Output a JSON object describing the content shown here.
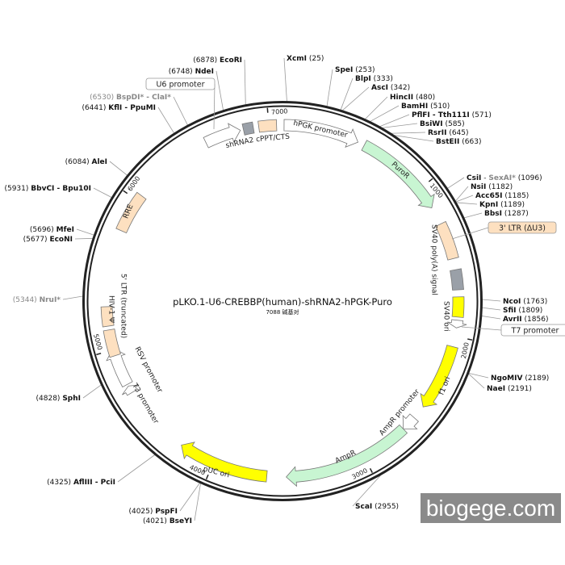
{
  "plasmid": {
    "name": "pLKO.1-U6-CREBBP(human)-shRNA2-hPGK-Puro",
    "size_label": "7088 碱基对",
    "length_bp": 7088,
    "tick_labels": [
      "1000",
      "2000",
      "3000",
      "4000",
      "5000",
      "6000",
      "7000"
    ]
  },
  "colors": {
    "ring": "#222222",
    "tan": "#fde0c0",
    "green": "#c8f5d2",
    "yellow": "#ffff00",
    "gray": "#9aa0a8",
    "white": "#ffffff",
    "gray_site": "#888888"
  },
  "features": [
    {
      "label": "hPGK promoter",
      "start": 10,
      "end": 500,
      "shape": "arrow",
      "color": "#ffffff"
    },
    {
      "label": "PuroR",
      "start": 545,
      "end": 1142,
      "shape": "arrow",
      "color": "#c8f5d2"
    },
    {
      "label": "SV40 poly(A) signal",
      "start": 1260,
      "end": 1497,
      "shape": "box",
      "color": "#fde0c0"
    },
    {
      "label": "",
      "start": 1570,
      "end": 1700,
      "shape": "box",
      "color": "#9aa0a8"
    },
    {
      "label": "SV40 ori",
      "start": 1745,
      "end": 1875,
      "shape": "box",
      "color": "#ffff00"
    },
    {
      "label": "",
      "start": 1895,
      "end": 1945,
      "shape": "arrow",
      "color": "#ffffff"
    },
    {
      "label": "f1 ori",
      "start": 2067,
      "end": 2500,
      "shape": "arrow",
      "color": "#ffff00"
    },
    {
      "label": "AmpR promoter",
      "start": 2590,
      "end": 2690,
      "shape": "arrow",
      "color": "#ffffff"
    },
    {
      "label": "AmpR",
      "start": 2690,
      "end": 3520,
      "shape": "arrow",
      "color": "#c8f5d2"
    },
    {
      "label": "pUC ori",
      "start": 3645,
      "end": 4235,
      "shape": "arrow",
      "color": "#ffff00"
    },
    {
      "label": "T3 promoter",
      "start": 4700,
      "end": 4748,
      "shape": "arrow",
      "color": "#ffffff"
    },
    {
      "label": "RSV promoter",
      "start": 4760,
      "end": 5010,
      "shape": "arrow",
      "color": "#ffffff"
    },
    {
      "label": "5' LTR (truncated)",
      "start": 4960,
      "end": 5130,
      "shape": "box",
      "color": "#fde0c0"
    },
    {
      "label": "HIV-1 Ψ",
      "start": 5155,
      "end": 5280,
      "shape": "box",
      "color": "#fde0c0"
    },
    {
      "label": "RRE",
      "start": 5780,
      "end": 6040,
      "shape": "box",
      "color": "#fde0c0"
    },
    {
      "label": "",
      "start": 6580,
      "end": 6815,
      "shape": "arrow",
      "color": "#ffffff"
    },
    {
      "label": "shRNA2",
      "start": 6835,
      "end": 6900,
      "shape": "box",
      "color": "#9aa0a8"
    },
    {
      "label": "cPPT/CTS",
      "start": 6935,
      "end": 7050,
      "shape": "box",
      "color": "#fde0c0"
    }
  ],
  "callouts": [
    {
      "label": "U6 promoter",
      "position": 6700,
      "fill": "#ffffff"
    },
    {
      "label": "3' LTR (ΔU3)",
      "position": 1380,
      "fill": "#fde0c0"
    },
    {
      "label": "T7 promoter",
      "position": 1915,
      "fill": "#ffffff"
    }
  ],
  "sites": [
    {
      "name": "XcmI",
      "position": 25,
      "gray": false
    },
    {
      "name": "SpeI",
      "position": 253,
      "gray": false
    },
    {
      "name": "BlpI",
      "position": 333,
      "gray": false
    },
    {
      "name": "AscI",
      "position": 342,
      "gray": false
    },
    {
      "name": "HincII",
      "position": 480,
      "gray": false
    },
    {
      "name": "BamHI",
      "position": 510,
      "gray": false
    },
    {
      "name": "PflFI - Tth111I",
      "position": 571,
      "gray": false
    },
    {
      "name": "BsiWI",
      "position": 585,
      "gray": false
    },
    {
      "name": "RsrII",
      "position": 645,
      "gray": false
    },
    {
      "name": "BstEII",
      "position": 663,
      "gray": false
    },
    {
      "name": "CsiI",
      "name2": "SexAI*",
      "position": 1096,
      "gray": false
    },
    {
      "name": "NsiI",
      "position": 1182,
      "gray": false
    },
    {
      "name": "Acc65I",
      "position": 1185,
      "gray": false
    },
    {
      "name": "KpnI",
      "position": 1189,
      "gray": false
    },
    {
      "name": "BbsI",
      "position": 1287,
      "gray": false
    },
    {
      "name": "NcoI",
      "position": 1763,
      "gray": false
    },
    {
      "name": "SfiI",
      "position": 1809,
      "gray": false
    },
    {
      "name": "AvrII",
      "position": 1856,
      "gray": false
    },
    {
      "name": "NgoMIV",
      "position": 2189,
      "gray": false
    },
    {
      "name": "NaeI",
      "position": 2191,
      "gray": false
    },
    {
      "name": "ScaI",
      "position": 2955,
      "gray": false
    },
    {
      "name": "BseYI",
      "position": 4021,
      "gray": false
    },
    {
      "name": "PspFI",
      "position": 4025,
      "gray": false
    },
    {
      "name": "AflIII - PciI",
      "position": 4325,
      "gray": false
    },
    {
      "name": "SphI",
      "position": 4828,
      "gray": false
    },
    {
      "name": "NruI*",
      "position": 5344,
      "gray": true
    },
    {
      "name": "EcoNI",
      "position": 5677,
      "gray": false
    },
    {
      "name": "MfeI",
      "position": 5696,
      "gray": false
    },
    {
      "name": "BbvCI - Bpu10I",
      "position": 5931,
      "gray": false
    },
    {
      "name": "AleI",
      "position": 6084,
      "gray": false
    },
    {
      "name": "KflI - PpuMI",
      "position": 6441,
      "gray": false
    },
    {
      "name": "BspDI* - ClaI*",
      "position": 6530,
      "gray": true
    },
    {
      "name": "NdeI",
      "position": 6748,
      "gray": false
    },
    {
      "name": "EcoRI",
      "position": 6878,
      "gray": false
    }
  ],
  "watermark": "biogege.com"
}
